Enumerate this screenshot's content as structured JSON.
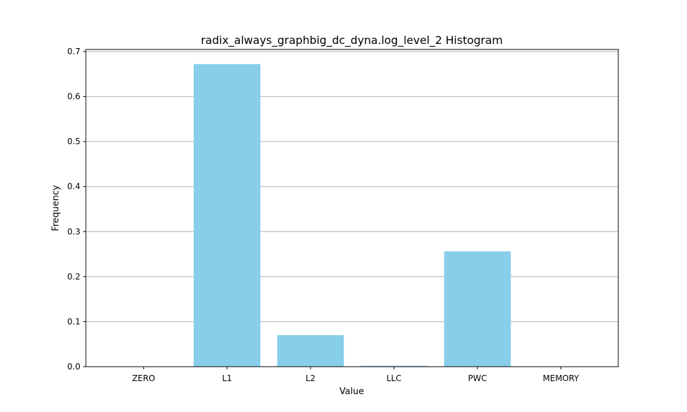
{
  "chart_data": {
    "type": "bar",
    "title": "radix_always_graphbig_dc_dyna.log_level_2 Histogram",
    "xlabel": "Value",
    "ylabel": "Frequency",
    "categories": [
      "ZERO",
      "L1",
      "L2",
      "LLC",
      "PWC",
      "MEMORY"
    ],
    "values": [
      0.0,
      0.672,
      0.07,
      0.002,
      0.256,
      0.0
    ],
    "ylim": [
      0,
      0.7
    ],
    "yticks": [
      0.0,
      0.1,
      0.2,
      0.3,
      0.4,
      0.5,
      0.6,
      0.7
    ],
    "ytick_labels": [
      "0.0",
      "0.1",
      "0.2",
      "0.3",
      "0.4",
      "0.5",
      "0.6",
      "0.7"
    ],
    "grid": "y",
    "bar_color": "#87ceeb",
    "grid_color": "#b0b0b0"
  }
}
